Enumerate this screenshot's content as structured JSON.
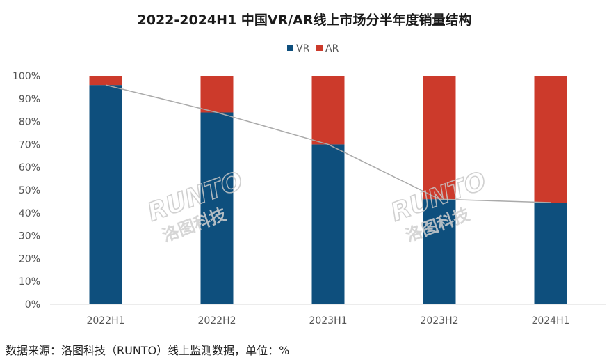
{
  "chart_data": {
    "type": "bar",
    "stacked": true,
    "title": "2022-2024H1 中国VR/AR线上市场分半年度销量结构",
    "categories": [
      "2022H1",
      "2022H2",
      "2023H1",
      "2023H2",
      "2024H1"
    ],
    "series": [
      {
        "name": "VR",
        "values": [
          96,
          84,
          70,
          46,
          44.5
        ],
        "color": "#0e4f7d"
      },
      {
        "name": "AR",
        "values": [
          4,
          16,
          30,
          54,
          55.5
        ],
        "color": "#cc3a2b"
      }
    ],
    "trend_line": {
      "series": "VR",
      "color": "#aaaaaa"
    },
    "ylim": [
      0,
      100
    ],
    "yticks": [
      "0%",
      "10%",
      "20%",
      "30%",
      "40%",
      "50%",
      "60%",
      "70%",
      "80%",
      "90%",
      "100%"
    ],
    "legend_position": "top-center",
    "grid": false
  },
  "watermark": {
    "logo_text": "RUNTO",
    "cn_text": "洛图科技"
  },
  "source_note": "数据来源：洛图科技（RUNTO）线上监测数据，单位：%"
}
